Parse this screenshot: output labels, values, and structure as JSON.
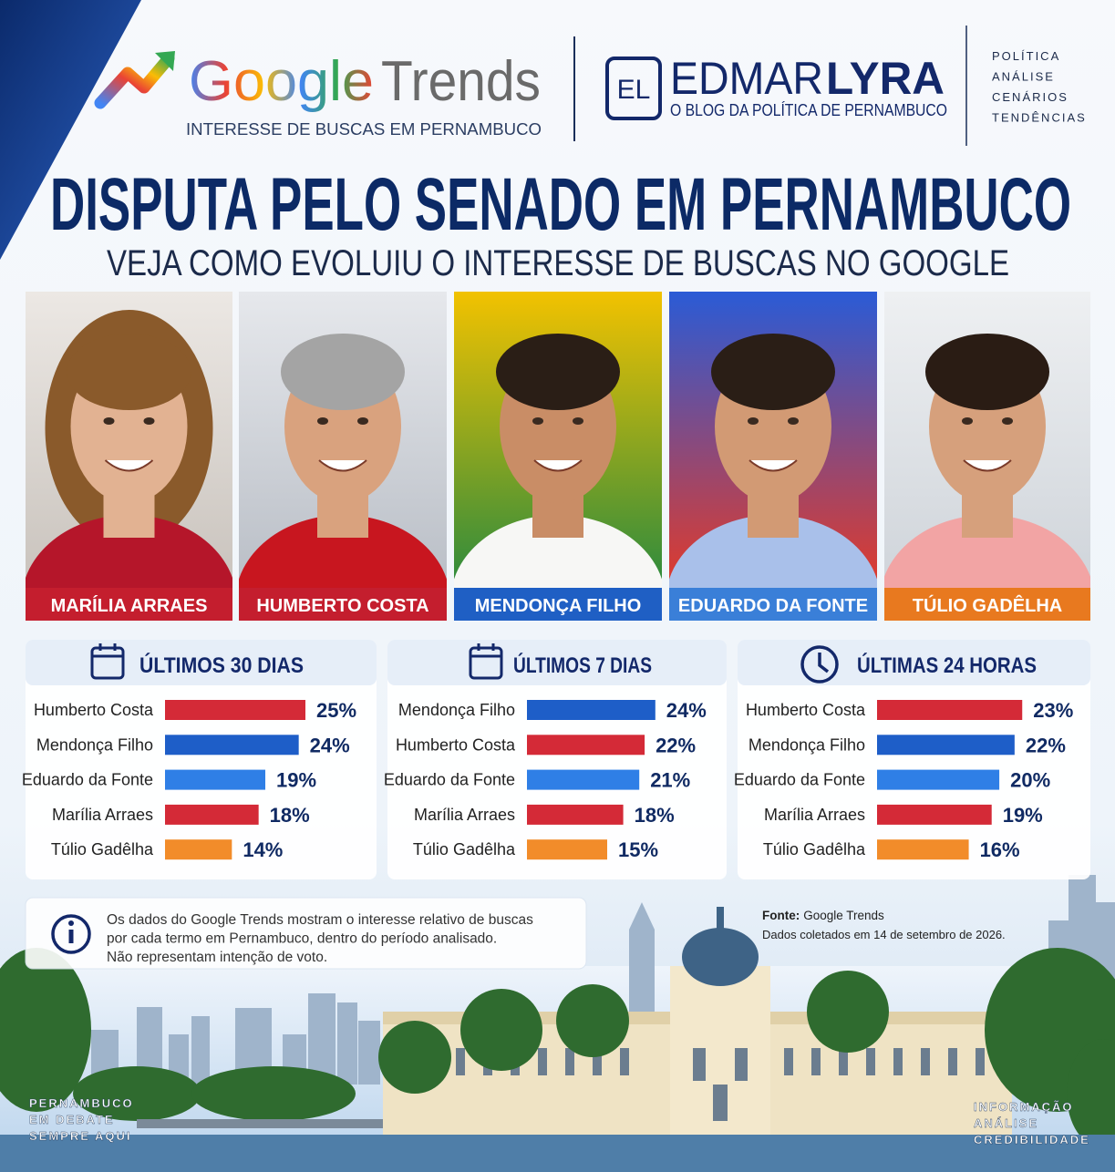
{
  "header": {
    "google": "Google",
    "trends": "Trends",
    "tagline": "INTERESSE DE BUSCAS EM PERNAMBUCO"
  },
  "brand": {
    "badge": "EL",
    "first": "EDMAR",
    "second": "LYRA",
    "tagline": "O BLOG DA POLÍTICA DE PERNAMBUCO"
  },
  "tags": [
    "POLÍTICA",
    "ANÁLISE",
    "CENÁRIOS",
    "TENDÊNCIAS"
  ],
  "title": "DISPUTA PELO SENADO EM PERNAMBUCO",
  "subtitle": "VEJA COMO EVOLUIU O INTERESSE DE BUSCAS NO GOOGLE",
  "candidates": [
    {
      "name": "MARÍLIA ARRAES",
      "color": "#c41e2e"
    },
    {
      "name": "HUMBERTO COSTA",
      "color": "#c41e2e"
    },
    {
      "name": "MENDONÇA FILHO",
      "color": "#1f5fc4"
    },
    {
      "name": "EDUARDO DA FONTE",
      "color": "#3a7fd8"
    },
    {
      "name": "TÚLIO GADÊLHA",
      "color": "#e8791f"
    }
  ],
  "chart_data": [
    {
      "type": "bar",
      "title": "ÚLTIMOS 30 DIAS",
      "categories": [
        "Humberto Costa",
        "Mendonça Filho",
        "Eduardo da Fonte",
        "Marília Arraes",
        "Túlio Gadêlha"
      ],
      "values": [
        25,
        24,
        19,
        18,
        14
      ],
      "value_labels": [
        "25%",
        "24%",
        "19%",
        "18%",
        "14%"
      ],
      "colors": [
        "#d42a37",
        "#1e5ec8",
        "#2f7fe6",
        "#d42a37",
        "#f28c2a"
      ],
      "xlim": [
        4,
        28
      ]
    },
    {
      "type": "bar",
      "title": "ÚLTIMOS 7 DIAS",
      "categories": [
        "Mendonça Filho",
        "Humberto Costa",
        "Eduardo da Fonte",
        "Marília Arraes",
        "Túlio Gadêlha"
      ],
      "values": [
        24,
        22,
        21,
        18,
        15
      ],
      "value_labels": [
        "24%",
        "22%",
        "21%",
        "18%",
        "15%"
      ],
      "colors": [
        "#1e5ec8",
        "#d42a37",
        "#2f7fe6",
        "#d42a37",
        "#f28c2a"
      ],
      "xlim": [
        0,
        30
      ]
    },
    {
      "type": "bar",
      "title": "ÚLTIMAS 24 HORAS",
      "categories": [
        "Humberto Costa",
        "Mendonça Filho",
        "Eduardo da Fonte",
        "Marília Arraes",
        "Túlio Gadêlha"
      ],
      "values": [
        23,
        22,
        20,
        19,
        16
      ],
      "value_labels": [
        "23%",
        "22%",
        "20%",
        "19%",
        "16%"
      ],
      "colors": [
        "#d42a37",
        "#1e5ec8",
        "#2f7fe6",
        "#d42a37",
        "#f28c2a"
      ],
      "xlim": [
        4,
        25
      ]
    }
  ],
  "note": [
    "Os dados do Google Trends mostram o interesse relativo de buscas",
    "por cada termo em Pernambuco, dentro do período analisado.",
    "Não representam intenção de voto."
  ],
  "source": {
    "label": "Fonte:",
    "name": "Google Trends",
    "date": "Dados coletados em 14 de setembro de 2026."
  },
  "footer_left": [
    "PERNAMBUCO",
    "EM DEBATE",
    "SEMPRE AQUI"
  ],
  "footer_right": [
    "INFORMAÇÃO",
    "ANÁLISE",
    "CREDIBILIDADE"
  ]
}
